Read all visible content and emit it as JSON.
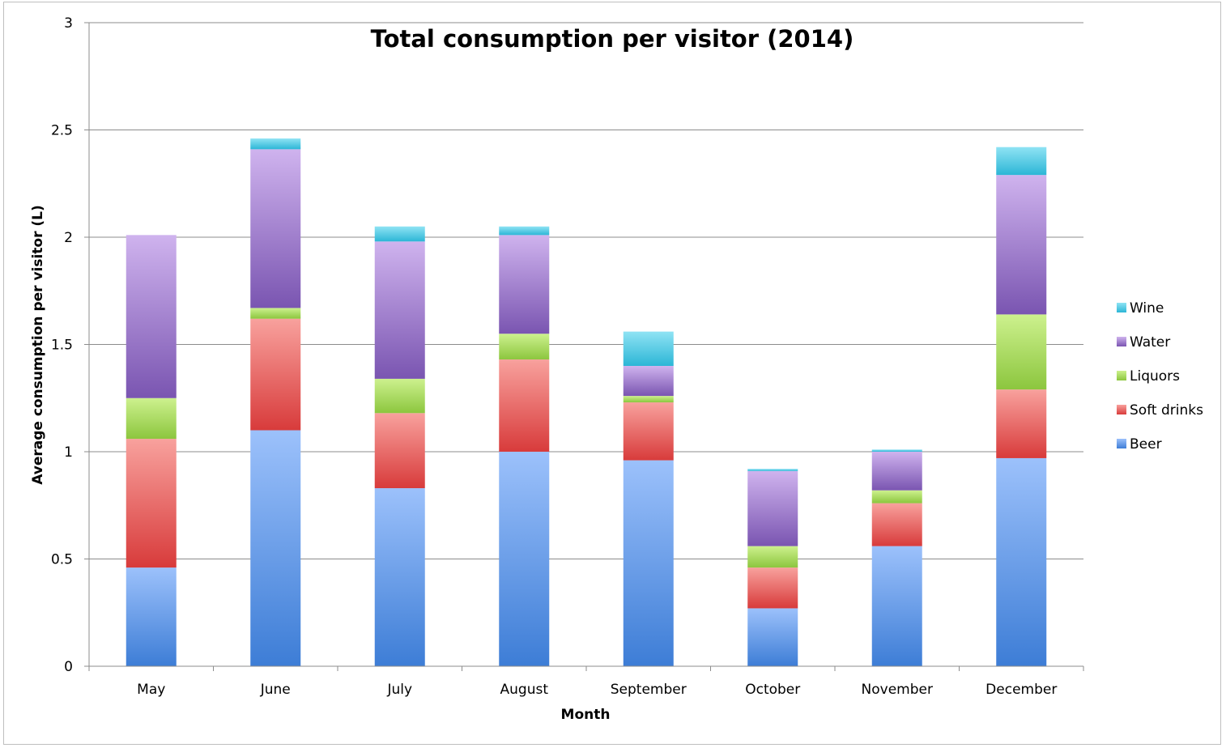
{
  "chart_data": {
    "type": "bar",
    "stacked": true,
    "title": "Total consumption per visitor (2014)",
    "xlabel": "Month",
    "ylabel": "Average consumption per visitor (L)",
    "ylim": [
      0,
      3
    ],
    "yticks": [
      0,
      0.5,
      1,
      1.5,
      2,
      2.5,
      3
    ],
    "ytick_labels": [
      "0",
      "0.5",
      "1",
      "1.5",
      "2",
      "2.5",
      "3"
    ],
    "grid": true,
    "legend_position": "right",
    "categories": [
      "May",
      "June",
      "July",
      "August",
      "September",
      "October",
      "November",
      "December"
    ],
    "series": [
      {
        "name": "Beer",
        "color": "#4f8fe0",
        "values": [
          0.46,
          1.1,
          0.83,
          1.0,
          0.96,
          0.27,
          0.56,
          0.97
        ]
      },
      {
        "name": "Soft drinks",
        "color": "#e05252",
        "values": [
          0.6,
          0.52,
          0.35,
          0.43,
          0.27,
          0.19,
          0.2,
          0.32
        ]
      },
      {
        "name": "Liquors",
        "color": "#9fd352",
        "values": [
          0.19,
          0.05,
          0.16,
          0.12,
          0.03,
          0.1,
          0.06,
          0.35
        ]
      },
      {
        "name": "Water",
        "color": "#9170c7",
        "values": [
          0.76,
          0.74,
          0.64,
          0.46,
          0.14,
          0.35,
          0.18,
          0.65
        ]
      },
      {
        "name": "Wine",
        "color": "#4cc9e3",
        "values": [
          0.0,
          0.05,
          0.07,
          0.04,
          0.16,
          0.01,
          0.01,
          0.13
        ]
      }
    ]
  }
}
